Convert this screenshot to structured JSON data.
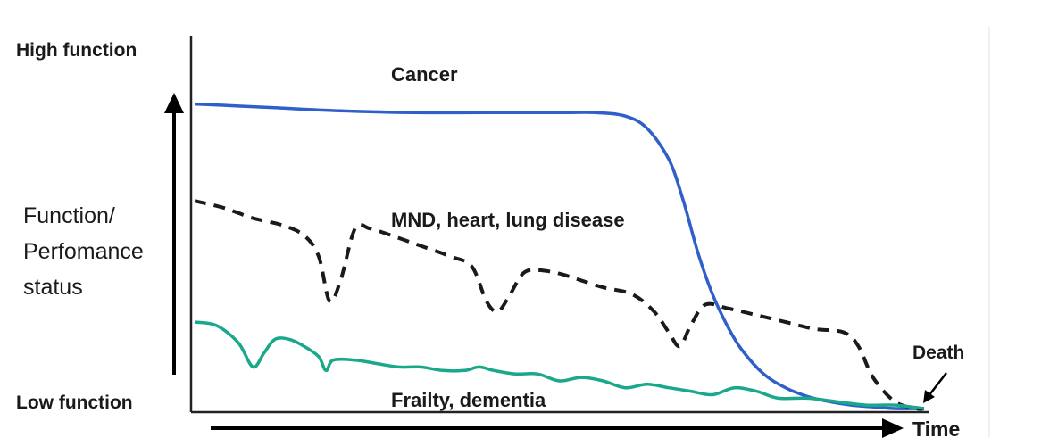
{
  "chart_data": {
    "type": "line",
    "title": "",
    "y_axis": {
      "high_label": "High function",
      "low_label": "Low function",
      "title_lines": [
        "Function/",
        "Perfomance",
        "status"
      ]
    },
    "x_axis": {
      "label": "Time"
    },
    "xlim": [
      0,
      100
    ],
    "ylim": [
      0,
      100
    ],
    "grid": false,
    "legend": "none",
    "series": [
      {
        "name": "Cancer",
        "style": "solid",
        "color": "#2f5fc9",
        "x": [
          0,
          10,
          20,
          30,
          40,
          50,
          55,
          59,
          62,
          65,
          67,
          69,
          71,
          73,
          75,
          78,
          81,
          84,
          87,
          90,
          93,
          96,
          100
        ],
        "y": [
          88,
          87,
          86,
          85.5,
          85.5,
          85.5,
          85.5,
          84.5,
          81,
          72,
          60,
          45,
          33,
          24,
          17,
          10,
          6,
          3.5,
          2,
          1,
          0.5,
          0,
          0
        ]
      },
      {
        "name": "MND, heart, lung disease",
        "style": "dashed",
        "color": "#1a1a1a",
        "x": [
          0,
          4,
          8,
          12,
          15,
          17,
          18.5,
          20,
          22,
          24,
          27,
          31,
          35,
          38,
          40,
          41.5,
          43,
          45,
          47,
          50,
          53,
          56,
          60,
          63,
          65,
          66.5,
          68,
          70,
          73,
          77,
          81,
          85,
          89,
          91,
          93,
          96,
          99,
          100
        ],
        "y": [
          60,
          58,
          55,
          53,
          50,
          44,
          31,
          37,
          52,
          52,
          50,
          47,
          44,
          41,
          31,
          28,
          32,
          39,
          40,
          39,
          37,
          35,
          33,
          28,
          22,
          18,
          24,
          30,
          29,
          27,
          25,
          23,
          22,
          18,
          9,
          2,
          0,
          0
        ]
      },
      {
        "name": "Frailty, dementia",
        "style": "solid",
        "color": "#1aa88a",
        "x": [
          0,
          3,
          6,
          8,
          9.5,
          11,
          13,
          15,
          17,
          18,
          19,
          22,
          25,
          28,
          31,
          34,
          37,
          39,
          41,
          44,
          47,
          50,
          53,
          56,
          59,
          62,
          65,
          68,
          71,
          74,
          77,
          80,
          84,
          88,
          92,
          96,
          100
        ],
        "y": [
          25,
          24,
          19,
          12,
          16,
          20,
          20,
          18,
          15,
          11,
          14,
          14,
          13,
          12,
          12,
          11,
          11,
          12,
          11,
          10,
          10,
          8,
          9,
          8,
          6,
          7,
          6,
          5,
          4,
          6,
          5,
          3,
          3,
          2,
          1,
          1,
          0
        ]
      }
    ],
    "annotations": [
      "Death"
    ]
  }
}
